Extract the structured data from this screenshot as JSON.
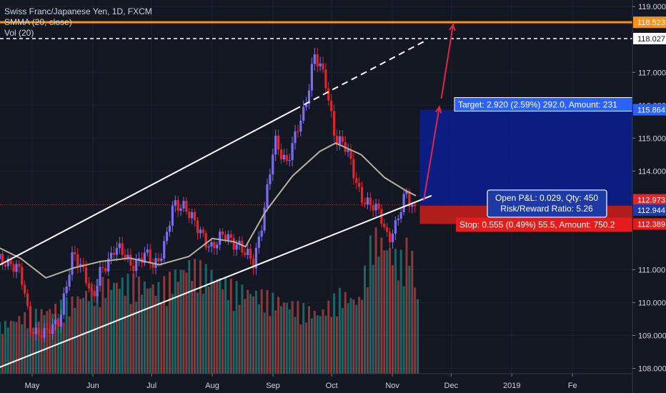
{
  "header": {
    "symbol_line": "Swiss Franc/Japanese Yen, 1D, FXCM",
    "smma_line": "SMMA (20, close)",
    "vol_line": "Vol (20)"
  },
  "colors": {
    "background": "#131722",
    "up": "#7b6cf0",
    "down": "#e0262b",
    "vol_up": "#26a69a",
    "vol_down": "#ef5350",
    "smma": "#b7b09e",
    "resistance": "#f7931a",
    "target_zone": "#0c1e8c",
    "stop_zone": "#c31d1d",
    "target_label": "#2962ff",
    "stop_label": "#e51c1c"
  },
  "chart_data": {
    "type": "candlestick",
    "title": "Swiss Franc/Japanese Yen, 1D, FXCM",
    "x_axis": {
      "tick_labels": [
        "May",
        "Jun",
        "Jul",
        "Aug",
        "Sep",
        "Oct",
        "Nov",
        "Dec",
        "2019",
        "Fe"
      ]
    },
    "y_axis": {
      "range": [
        107.25,
        119.2
      ],
      "tick_labels": [
        "119.000",
        "117.000",
        "116.000",
        "115.000",
        "114.000",
        "111.000",
        "110.000",
        "109.000",
        "108.000"
      ]
    },
    "price_badges": [
      "118.523",
      "118.027",
      "115.864",
      "112.973",
      "112.944",
      "112.389"
    ],
    "horizontal_levels": {
      "resistance": 118.523,
      "previous_high": 118.027,
      "current": 112.973
    },
    "position": {
      "entry": 112.944,
      "target_price": 115.864,
      "stop_price": 112.389,
      "target_label": "Target: 2.920 (2.59%) 292.0, Amount: 231",
      "stop_label": "Stop: 0.555 (0.49%) 55.5, Amount: 750.2",
      "pnl_label": "Open P&L: 0.029, Qty: 450",
      "rr_label": "Risk/Reward Ratio: 5.26"
    },
    "channel": {
      "upper": [
        {
          "date": "2018-04-13",
          "price": 111.1
        },
        {
          "date": "2018-09-12",
          "price": 115.865
        }
      ],
      "lower": [
        {
          "date": "2018-04-13",
          "price": 108.0
        },
        {
          "date": "2018-11-21",
          "price": 113.25
        }
      ]
    },
    "projection_arrows": [
      [
        {
          "date": "2018-11-17",
          "price": 113.1
        },
        {
          "date": "2018-11-25",
          "price": 115.95
        }
      ],
      [
        {
          "date": "2018-11-26",
          "price": 116.2
        },
        {
          "date": "2018-12-02",
          "price": 118.45
        }
      ]
    ],
    "series": [
      {
        "name": "SMMA (20, close)",
        "type": "line",
        "points": [
          [
            "2018-04-13",
            111.7
          ],
          [
            "2018-04-25",
            111.35
          ],
          [
            "2018-05-08",
            110.75
          ],
          [
            "2018-05-22",
            111.05
          ],
          [
            "2018-06-05",
            111.25
          ],
          [
            "2018-06-20",
            111.35
          ],
          [
            "2018-07-05",
            111.15
          ],
          [
            "2018-07-20",
            111.4
          ],
          [
            "2018-08-01",
            111.95
          ],
          [
            "2018-08-12",
            111.85
          ],
          [
            "2018-08-18",
            111.7
          ],
          [
            "2018-08-28",
            112.75
          ],
          [
            "2018-09-11",
            113.85
          ],
          [
            "2018-09-25",
            114.6
          ],
          [
            "2018-10-03",
            114.85
          ],
          [
            "2018-10-16",
            114.5
          ],
          [
            "2018-10-28",
            113.8
          ],
          [
            "2018-11-08",
            113.4
          ],
          [
            "2018-11-13",
            113.25
          ]
        ]
      },
      {
        "name": "Price",
        "type": "candlestick",
        "anchors": [
          [
            "2018-04-13",
            111.2
          ],
          [
            "2018-04-20",
            111.3
          ],
          [
            "2018-04-25",
            110.85
          ],
          [
            "2018-04-30",
            109.3
          ],
          [
            "2018-05-08",
            108.95
          ],
          [
            "2018-05-15",
            109.6
          ],
          [
            "2018-05-22",
            111.4
          ],
          [
            "2018-05-28",
            111.0
          ],
          [
            "2018-06-01",
            110.0
          ],
          [
            "2018-06-05",
            110.9
          ],
          [
            "2018-06-12",
            111.7
          ],
          [
            "2018-06-20",
            111.2
          ],
          [
            "2018-06-28",
            111.4
          ],
          [
            "2018-07-02",
            111.1
          ],
          [
            "2018-07-08",
            111.85
          ],
          [
            "2018-07-12",
            112.85
          ],
          [
            "2018-07-18",
            113.05
          ],
          [
            "2018-07-25",
            112.1
          ],
          [
            "2018-08-01",
            111.75
          ],
          [
            "2018-08-08",
            112.0
          ],
          [
            "2018-08-14",
            111.85
          ],
          [
            "2018-08-18",
            111.4
          ],
          [
            "2018-08-22",
            111.2
          ],
          [
            "2018-08-28",
            113.0
          ],
          [
            "2018-09-02",
            114.85
          ],
          [
            "2018-09-08",
            114.35
          ],
          [
            "2018-09-12",
            114.9
          ],
          [
            "2018-09-17",
            115.85
          ],
          [
            "2018-09-22",
            117.6
          ],
          [
            "2018-09-28",
            116.6
          ],
          [
            "2018-10-03",
            115.05
          ],
          [
            "2018-10-07",
            114.8
          ],
          [
            "2018-10-12",
            114.0
          ],
          [
            "2018-10-16",
            113.3
          ],
          [
            "2018-10-20",
            112.9
          ],
          [
            "2018-10-26",
            112.75
          ],
          [
            "2018-10-30",
            111.95
          ],
          [
            "2018-11-03",
            112.25
          ],
          [
            "2018-11-08",
            113.45
          ],
          [
            "2018-11-13",
            112.75
          ]
        ]
      },
      {
        "name": "Vol (20)",
        "type": "bar",
        "points": [
          [
            "2018-04-13",
            0.14
          ],
          [
            "2018-04-25",
            0.17
          ],
          [
            "2018-05-08",
            0.19
          ],
          [
            "2018-05-22",
            0.22
          ],
          [
            "2018-06-05",
            0.27
          ],
          [
            "2018-06-20",
            0.28
          ],
          [
            "2018-07-05",
            0.26
          ],
          [
            "2018-07-20",
            0.33
          ],
          [
            "2018-08-01",
            0.3
          ],
          [
            "2018-08-12",
            0.26
          ],
          [
            "2018-08-25",
            0.24
          ],
          [
            "2018-09-10",
            0.21
          ],
          [
            "2018-09-25",
            0.18
          ],
          [
            "2018-10-05",
            0.24
          ],
          [
            "2018-10-15",
            0.22
          ],
          [
            "2018-10-22",
            0.42
          ],
          [
            "2018-10-28",
            0.39
          ],
          [
            "2018-11-05",
            0.34
          ],
          [
            "2018-11-10",
            0.4
          ],
          [
            "2018-11-14",
            0.22
          ]
        ]
      }
    ]
  }
}
